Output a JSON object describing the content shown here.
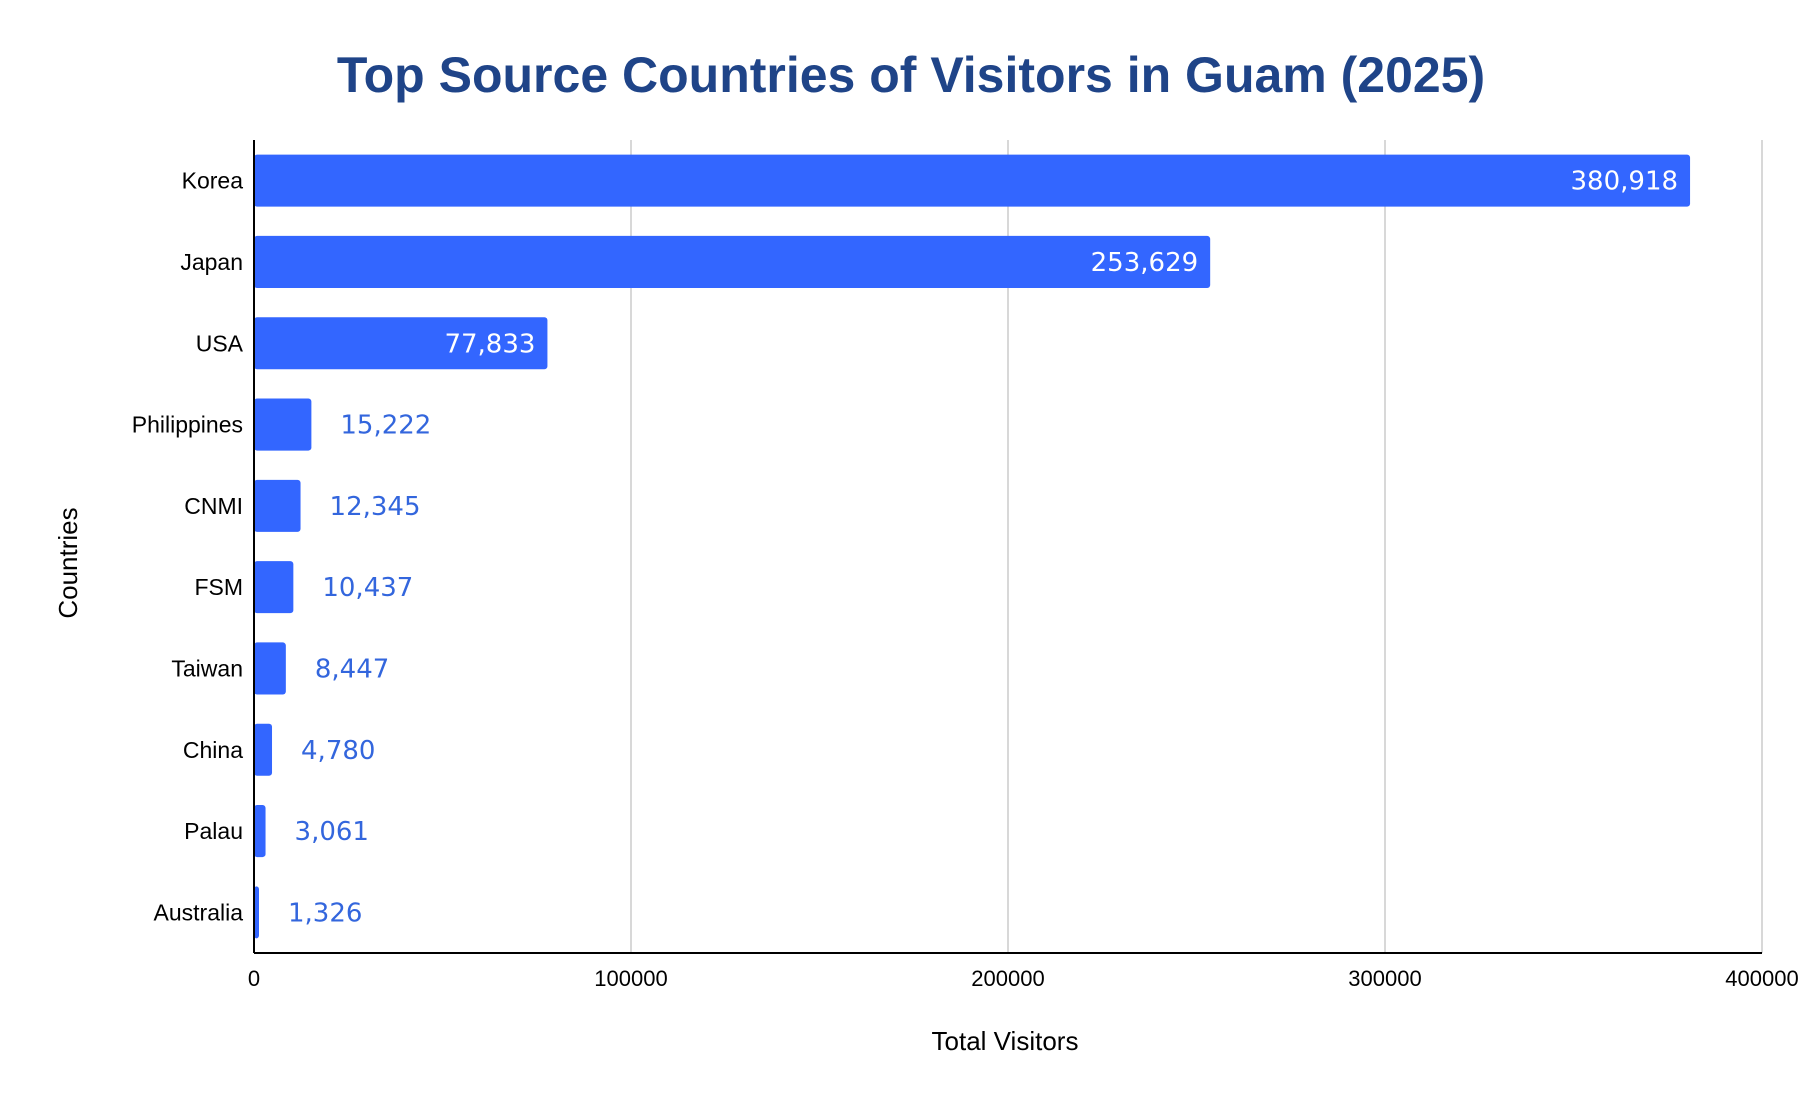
{
  "chart_data": {
    "type": "bar",
    "orientation": "horizontal",
    "title": "Top Source Countries of Visitors in Guam (2025)",
    "xlabel": "Total Visitors",
    "ylabel": "Countries",
    "categories": [
      "Korea",
      "Japan",
      "USA",
      "Philippines",
      "CNMI",
      "FSM",
      "Taiwan",
      "China",
      "Palau",
      "Australia"
    ],
    "values": [
      380918,
      253629,
      77833,
      15222,
      12345,
      10437,
      8447,
      4780,
      3061,
      1326
    ],
    "data_labels": [
      "380,918",
      "253,629",
      "77,833",
      "15,222",
      "12,345",
      "10,437",
      "8,447",
      "4,780",
      "3,061",
      "1,326"
    ],
    "xlim": [
      0,
      400000
    ],
    "x_ticks": [
      "0",
      "100000",
      "200000",
      "300000",
      "400000"
    ],
    "grid": "vertical",
    "legend": "none",
    "colors": {
      "bar": "#3366ff",
      "title": "#1f4488",
      "label_outside": "#3366dd",
      "label_inside": "#ffffff",
      "grid": "#cccccc",
      "axis": "#000000"
    }
  }
}
